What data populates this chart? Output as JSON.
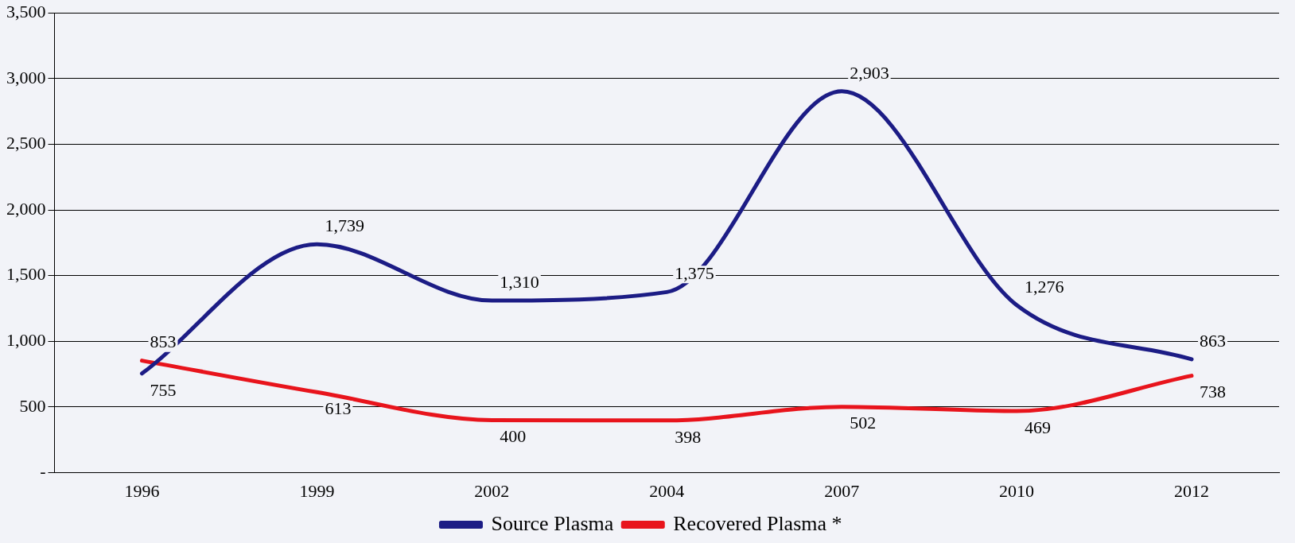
{
  "chart_data": {
    "type": "line",
    "categories": [
      "1996",
      "1999",
      "2002",
      "2004",
      "2007",
      "2010",
      "2012"
    ],
    "series": [
      {
        "name": "Source Plasma",
        "color": "#1c1c85",
        "values": [
          755,
          1739,
          1310,
          1375,
          2903,
          1276,
          863
        ],
        "value_labels": [
          "755",
          "1,739",
          "1,310",
          "1,375",
          "2,903",
          "1,276",
          "863"
        ]
      },
      {
        "name": "Recovered Plasma *",
        "color": "#e8141c",
        "values": [
          853,
          613,
          400,
          398,
          502,
          469,
          738
        ],
        "value_labels": [
          "853",
          "613",
          "400",
          "398",
          "502",
          "469",
          "738"
        ]
      }
    ],
    "ylim": [
      0,
      3500
    ],
    "yticks": [
      {
        "value": 0,
        "label": "-"
      },
      {
        "value": 500,
        "label": "500"
      },
      {
        "value": 1000,
        "label": "1,000"
      },
      {
        "value": 1500,
        "label": "1,500"
      },
      {
        "value": 2000,
        "label": "2,000"
      },
      {
        "value": 2500,
        "label": "2,500"
      },
      {
        "value": 3000,
        "label": "3,000"
      },
      {
        "value": 3500,
        "label": "3,500"
      }
    ],
    "grid": "y",
    "legend": "bottom",
    "marker": "none",
    "line_style": "solid"
  }
}
